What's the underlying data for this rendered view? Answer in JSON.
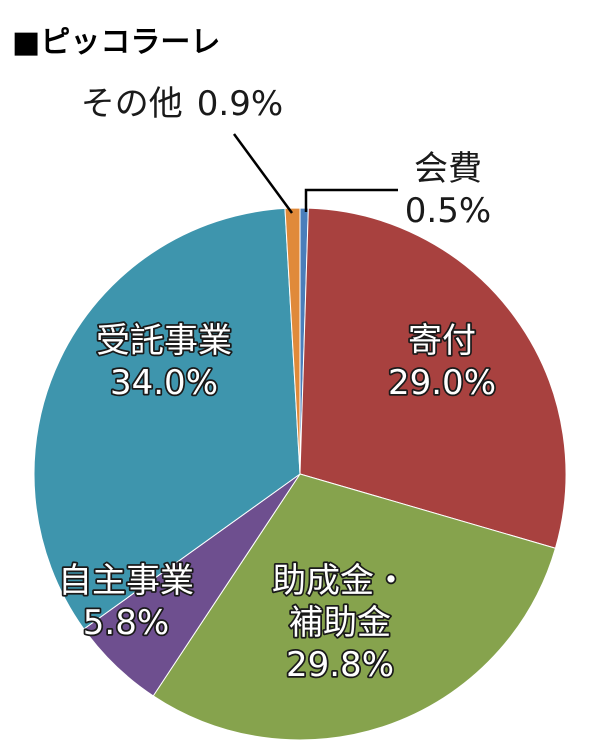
{
  "chart_data": {
    "type": "pie",
    "title": "■ピッコラーレ",
    "series": [
      {
        "name": "",
        "slices": [
          {
            "key": "kaihi",
            "label_lines": [
              "会費"
            ],
            "value_text": "0.5%",
            "value": 0.5,
            "color": "#4a7ebb"
          },
          {
            "key": "kifu",
            "label_lines": [
              "寄付"
            ],
            "value_text": "29.0%",
            "value": 29.0,
            "color": "#a8413f"
          },
          {
            "key": "josei",
            "label_lines": [
              "助成金・",
              "補助金"
            ],
            "value_text": "29.8%",
            "value": 29.8,
            "color": "#86a34d"
          },
          {
            "key": "jishu",
            "label_lines": [
              "自主事業"
            ],
            "value_text": "5.8%",
            "value": 5.8,
            "color": "#6e4f8f"
          },
          {
            "key": "jutaku",
            "label_lines": [
              "受託事業"
            ],
            "value_text": "34.0%",
            "value": 34.0,
            "color": "#3e95ad"
          },
          {
            "key": "sonota",
            "label_lines": [
              "その他"
            ],
            "value_text": "0.9%",
            "value": 0.9,
            "color": "#e08a3a"
          }
        ]
      }
    ],
    "start": "12 o'clock",
    "direction": "clockwise",
    "legend": "none"
  }
}
